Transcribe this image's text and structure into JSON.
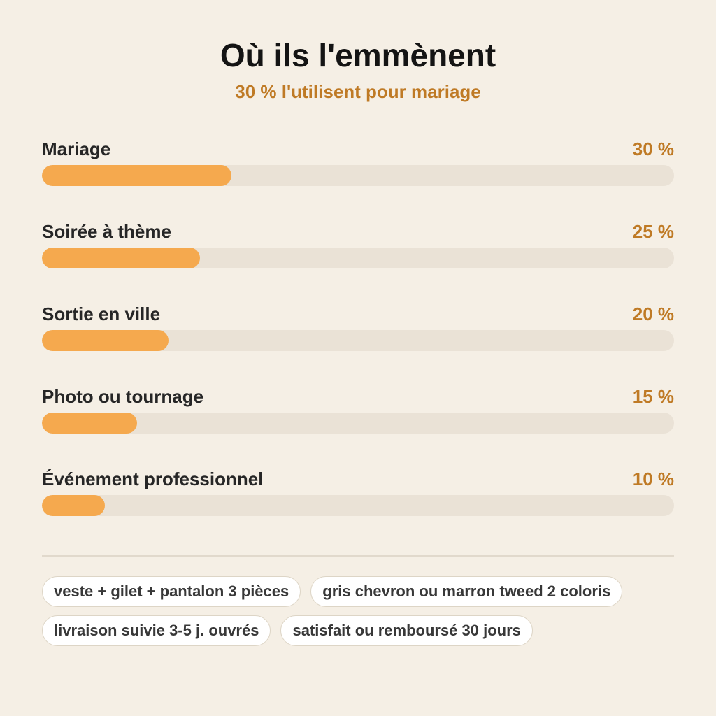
{
  "chart_data": {
    "type": "bar",
    "title": "Où ils l'emmènent",
    "subtitle": "30 % l'utilisent pour mariage",
    "categories": [
      "Mariage",
      "Soirée à thème",
      "Sortie en ville",
      "Photo ou tournage",
      "Événement professionnel"
    ],
    "values": [
      30,
      25,
      20,
      15,
      10
    ],
    "value_labels": [
      "30 %",
      "25 %",
      "20 %",
      "15 %",
      "10 %"
    ],
    "color": "#f5a94e",
    "xlim": [
      0,
      100
    ]
  },
  "tags": [
    "veste + gilet + pantalon 3 pièces",
    "gris chevron ou marron tweed 2 coloris",
    "livraison suivie 3-5 j. ouvrés",
    "satisfait ou remboursé 30 jours"
  ]
}
